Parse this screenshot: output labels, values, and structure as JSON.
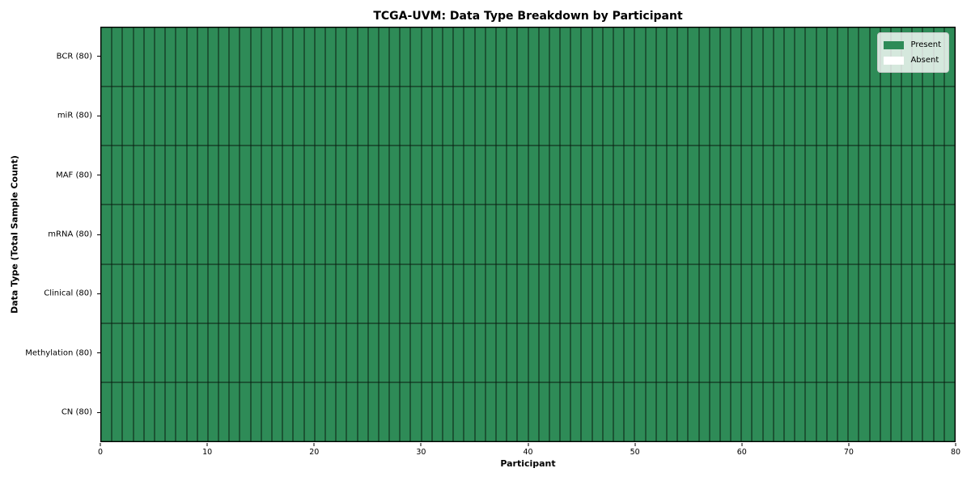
{
  "chart_data": {
    "type": "heatmap",
    "title": "TCGA-UVM: Data Type Breakdown by Participant",
    "xlabel": "Participant",
    "ylabel": "Data Type (Total Sample Count)",
    "rows": [
      "BCR (80)",
      "miR (80)",
      "MAF (80)",
      "mRNA (80)",
      "Clinical (80)",
      "Methylation (80)",
      "CN (80)"
    ],
    "n_participants": 80,
    "x_ticks": [
      0,
      10,
      20,
      30,
      40,
      50,
      60,
      70,
      80
    ],
    "x_range": [
      0,
      80
    ],
    "cell_encoding": {
      "1": "Present",
      "0": "Absent"
    },
    "matrix": [
      "11111111111111111111111111111111111111111111111111111111111111111111111111111111",
      "11111111111111111111111111111111111111111111111111111111111111111111111111111111",
      "11111111111111111111111111111111111111111111111111111111111111111111111111111111",
      "11111111111111111111111111111111111111111111111111111111111111111111111111111111",
      "11111111111111111111111111111111111111111111111111111111111111111111111111111111",
      "11111111111111111111111111111111111111111111111111111111111111111111111111111111",
      "11111111111111111111111111111111111111111111111111111111111111111111111111111111"
    ],
    "present_counts_per_row": [
      80,
      80,
      80,
      80,
      80,
      80,
      80
    ],
    "legend": {
      "position": "upper right",
      "items": [
        {
          "label": "Present",
          "color": "#2e8b57"
        },
        {
          "label": "Absent",
          "color": "#ffffff"
        }
      ]
    },
    "colors": {
      "present": "#2e8b57",
      "absent": "#ffffff",
      "cell_edge": "#1a1a1a",
      "background": "#ffffff"
    },
    "grid": false
  }
}
